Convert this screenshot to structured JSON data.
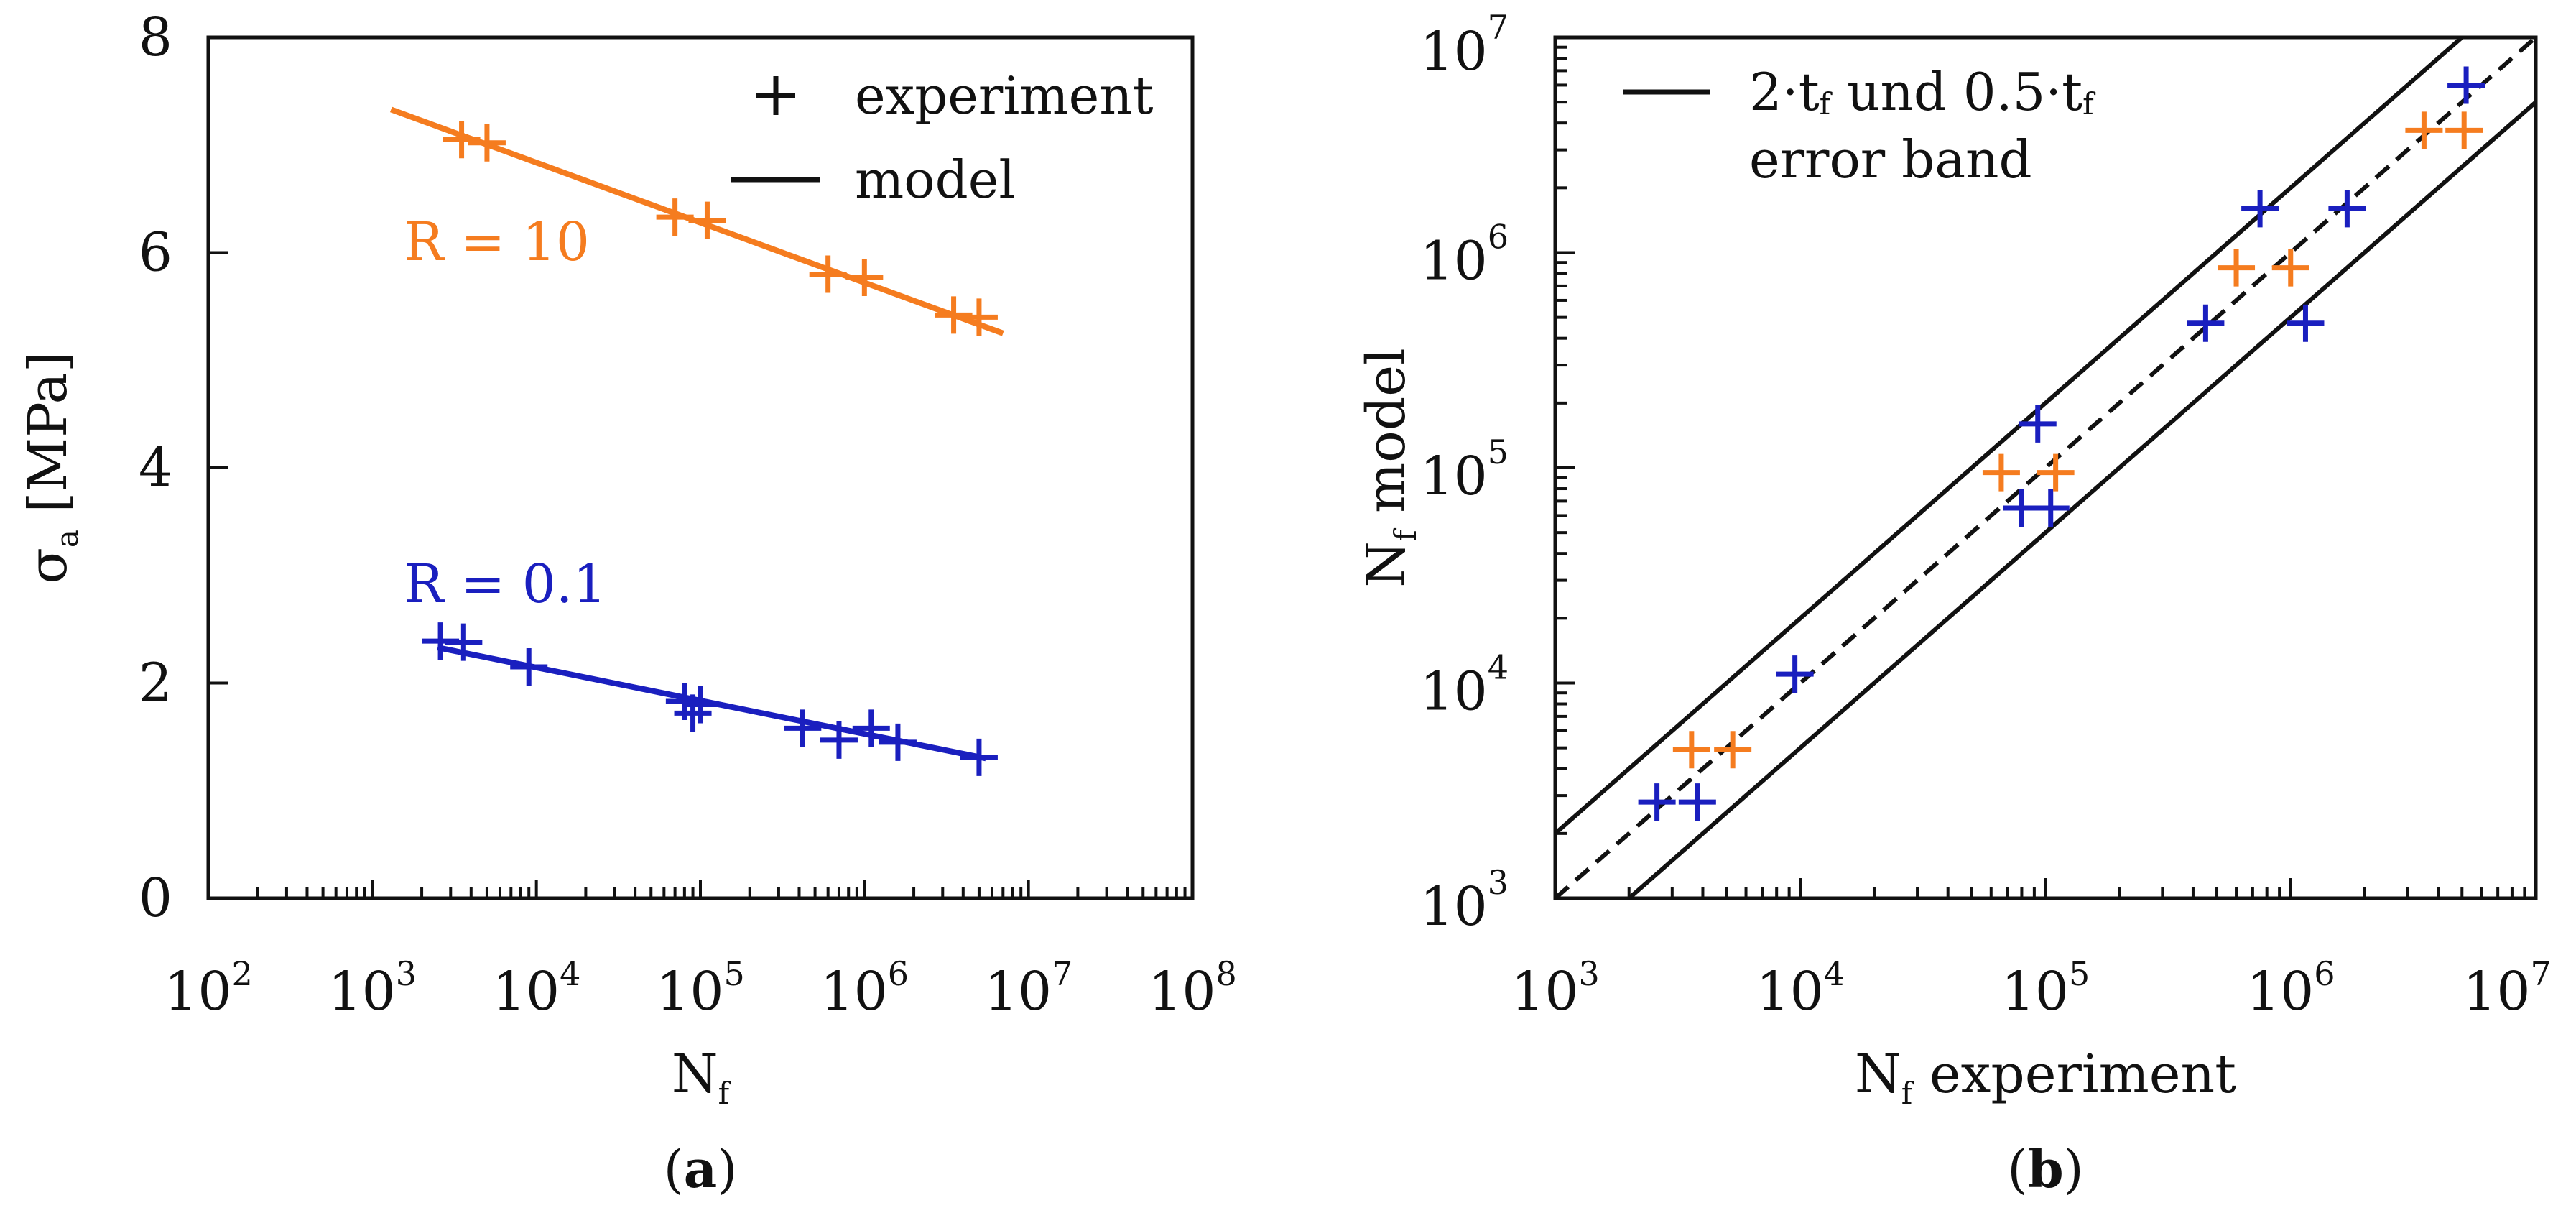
{
  "chart_data": [
    {
      "panel": "a",
      "panel_label": {
        "open": "(",
        "letter": "a",
        "close": ")"
      },
      "type": "scatter",
      "xscale": "log",
      "xlim": [
        100,
        100000000
      ],
      "ylim": [
        0,
        8
      ],
      "xticks": [
        {
          "base": "10",
          "exp": "2",
          "value": 100
        },
        {
          "base": "10",
          "exp": "3",
          "value": 1000
        },
        {
          "base": "10",
          "exp": "4",
          "value": 10000
        },
        {
          "base": "10",
          "exp": "5",
          "value": 100000
        },
        {
          "base": "10",
          "exp": "6",
          "value": 1000000
        },
        {
          "base": "10",
          "exp": "7",
          "value": 10000000
        },
        {
          "base": "10",
          "exp": "8",
          "value": 100000000
        }
      ],
      "yticks": [
        {
          "label": "0",
          "value": 0
        },
        {
          "label": "2",
          "value": 2
        },
        {
          "label": "4",
          "value": 4
        },
        {
          "label": "6",
          "value": 6
        },
        {
          "label": "8",
          "value": 8
        }
      ],
      "xlabel": {
        "main": "N",
        "sub": "f"
      },
      "ylabel": {
        "main": "σ",
        "sub": "a",
        "rest": " [MPa]"
      },
      "legend": {
        "position": "top-right",
        "entries": [
          {
            "marker": "plus",
            "label": "experiment"
          },
          {
            "marker": "line",
            "label": "model"
          }
        ]
      },
      "series": [
        {
          "name": "R=10",
          "label_text": "R = 10",
          "color": "#f57c1f",
          "points": [
            {
              "x": 3500,
              "y": 7.05
            },
            {
              "x": 5000,
              "y": 7.02
            },
            {
              "x": 70000,
              "y": 6.33
            },
            {
              "x": 110000,
              "y": 6.3
            },
            {
              "x": 600000,
              "y": 5.8
            },
            {
              "x": 1000000,
              "y": 5.77
            },
            {
              "x": 3500000,
              "y": 5.42
            },
            {
              "x": 5000000,
              "y": 5.4
            }
          ],
          "model_line": [
            {
              "x": 1300,
              "y": 7.33
            },
            {
              "x": 7000000,
              "y": 5.25
            }
          ]
        },
        {
          "name": "R=0.1",
          "label_text": "R = 0.1",
          "color": "#1a1fbf",
          "points": [
            {
              "x": 2600,
              "y": 2.39
            },
            {
              "x": 3600,
              "y": 2.38
            },
            {
              "x": 9000,
              "y": 2.15
            },
            {
              "x": 80000,
              "y": 1.83
            },
            {
              "x": 90000,
              "y": 1.72
            },
            {
              "x": 100000,
              "y": 1.8
            },
            {
              "x": 420000,
              "y": 1.58
            },
            {
              "x": 700000,
              "y": 1.47
            },
            {
              "x": 1100000,
              "y": 1.58
            },
            {
              "x": 1600000,
              "y": 1.45
            },
            {
              "x": 5000000,
              "y": 1.31
            }
          ],
          "model_line": [
            {
              "x": 2500,
              "y": 2.33
            },
            {
              "x": 5500000,
              "y": 1.3
            }
          ]
        }
      ]
    },
    {
      "panel": "b",
      "panel_label": {
        "open": "(",
        "letter": "b",
        "close": ")"
      },
      "type": "scatter",
      "xscale": "log",
      "yscale": "log",
      "xlim": [
        1000,
        10000000
      ],
      "ylim": [
        1000,
        10000000
      ],
      "xticks": [
        {
          "base": "10",
          "exp": "3",
          "value": 1000
        },
        {
          "base": "10",
          "exp": "4",
          "value": 10000
        },
        {
          "base": "10",
          "exp": "5",
          "value": 100000
        },
        {
          "base": "10",
          "exp": "6",
          "value": 1000000
        },
        {
          "base": "10",
          "exp": "7",
          "value": 10000000
        }
      ],
      "yticks": [
        {
          "base": "10",
          "exp": "3",
          "value": 1000
        },
        {
          "base": "10",
          "exp": "4",
          "value": 10000
        },
        {
          "base": "10",
          "exp": "5",
          "value": 100000
        },
        {
          "base": "10",
          "exp": "6",
          "value": 1000000
        },
        {
          "base": "10",
          "exp": "7",
          "value": 10000000
        }
      ],
      "xlabel": {
        "main": "N",
        "sub": "f",
        "rest": " experiment"
      },
      "ylabel": {
        "main": "N",
        "sub": "f",
        "rest": " model"
      },
      "legend": {
        "position": "top-left",
        "line1": {
          "a": "2·t",
          "a_sub": "f",
          "b": " und 0.5·t",
          "b_sub": "f"
        },
        "line2": "error band"
      },
      "reference_lines": [
        {
          "name": "upper-band",
          "factor": 2,
          "style": "solid",
          "color": "#111111"
        },
        {
          "name": "identity",
          "factor": 1,
          "style": "dashed",
          "color": "#111111"
        },
        {
          "name": "lower-band",
          "factor": 0.5,
          "style": "solid",
          "color": "#111111"
        }
      ],
      "series": [
        {
          "name": "R=0.1",
          "color": "#1a1fbf",
          "points": [
            {
              "x": 2600,
              "y": 2800
            },
            {
              "x": 3800,
              "y": 2800
            },
            {
              "x": 9500,
              "y": 11000
            },
            {
              "x": 80000,
              "y": 65000
            },
            {
              "x": 93000,
              "y": 160000
            },
            {
              "x": 105000,
              "y": 65000
            },
            {
              "x": 450000,
              "y": 470000
            },
            {
              "x": 750000,
              "y": 1600000
            },
            {
              "x": 1150000,
              "y": 470000
            },
            {
              "x": 1700000,
              "y": 1600000
            },
            {
              "x": 5200000,
              "y": 6000000
            }
          ]
        },
        {
          "name": "R=10",
          "color": "#f57c1f",
          "points": [
            {
              "x": 3600,
              "y": 4900
            },
            {
              "x": 5300,
              "y": 4900
            },
            {
              "x": 66000,
              "y": 95000
            },
            {
              "x": 110000,
              "y": 95000
            },
            {
              "x": 600000,
              "y": 850000
            },
            {
              "x": 1000000,
              "y": 850000
            },
            {
              "x": 3500000,
              "y": 3700000
            },
            {
              "x": 5100000,
              "y": 3700000
            }
          ]
        }
      ]
    }
  ]
}
